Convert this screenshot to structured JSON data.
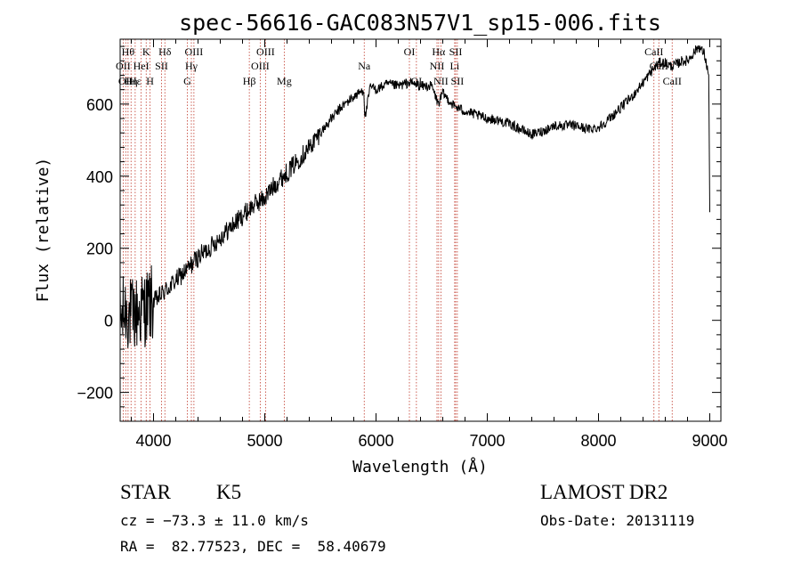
{
  "chart_data": {
    "type": "line",
    "title": "spec-56616-GAC083N57V1_sp15-006.fits",
    "xlabel": "Wavelength (Å)",
    "ylabel": "Flux (relative)",
    "xlim": [
      3700,
      9100
    ],
    "ylim": [
      -280,
      780
    ],
    "x_ticks": [
      4000,
      5000,
      6000,
      7000,
      8000,
      9000
    ],
    "y_ticks": [
      -200,
      0,
      200,
      400,
      600
    ],
    "x_tick_labels": [
      "4000",
      "5000",
      "6000",
      "7000",
      "8000",
      "9000"
    ],
    "y_tick_labels": [
      "−200",
      "0",
      "200",
      "400",
      "600"
    ],
    "grid": false,
    "series": [
      {
        "name": "",
        "color": "#000000",
        "x": [
          3700,
          3750,
          3800,
          3850,
          3900,
          3950,
          4000,
          4100,
          4200,
          4300,
          4400,
          4500,
          4600,
          4700,
          4800,
          4900,
          5000,
          5100,
          5200,
          5300,
          5400,
          5500,
          5600,
          5700,
          5800,
          5890,
          5900,
          5950,
          6000,
          6100,
          6200,
          6300,
          6400,
          6500,
          6560,
          6600,
          6700,
          6800,
          6900,
          7000,
          7100,
          7200,
          7300,
          7400,
          7500,
          7600,
          7700,
          7800,
          7900,
          8000,
          8100,
          8200,
          8300,
          8400,
          8500,
          8550,
          8600,
          8650,
          8700,
          8750,
          8800,
          8850,
          8900,
          8950,
          8990,
          9000
        ],
        "y": [
          0,
          30,
          10,
          20,
          30,
          40,
          50,
          80,
          110,
          140,
          175,
          200,
          230,
          260,
          290,
          320,
          340,
          380,
          410,
          445,
          480,
          520,
          560,
          595,
          620,
          640,
          560,
          650,
          640,
          655,
          650,
          660,
          650,
          650,
          600,
          630,
          595,
          580,
          570,
          560,
          555,
          545,
          530,
          515,
          525,
          540,
          540,
          540,
          530,
          535,
          560,
          590,
          620,
          660,
          700,
          715,
          715,
          705,
          710,
          720,
          720,
          740,
          760,
          740,
          680,
          300
        ]
      }
    ],
    "line_markers": [
      {
        "wavelength": 3727,
        "label": "OII",
        "row": 2
      },
      {
        "wavelength": 3750,
        "label": "OII",
        "row": 3
      },
      {
        "wavelength": 3771,
        "label": "Hθ",
        "row": 1
      },
      {
        "wavelength": 3798,
        "label": "Hη",
        "row": 3
      },
      {
        "wavelength": 3835,
        "label": "Hε",
        "row": 3
      },
      {
        "wavelength": 3889,
        "label": "HeI",
        "row": 2
      },
      {
        "wavelength": 3934,
        "label": "K",
        "row": 1
      },
      {
        "wavelength": 3969,
        "label": "H",
        "row": 3
      },
      {
        "wavelength": 4072,
        "label": "SII",
        "row": 2
      },
      {
        "wavelength": 4102,
        "label": "Hδ",
        "row": 1
      },
      {
        "wavelength": 4304,
        "label": "G",
        "row": 3
      },
      {
        "wavelength": 4340,
        "label": "Hγ",
        "row": 2
      },
      {
        "wavelength": 4363,
        "label": "OIII",
        "row": 1
      },
      {
        "wavelength": 4861,
        "label": "Hβ",
        "row": 3
      },
      {
        "wavelength": 4959,
        "label": "OIII",
        "row": 2
      },
      {
        "wavelength": 5007,
        "label": "OIII",
        "row": 1
      },
      {
        "wavelength": 5175,
        "label": "Mg",
        "row": 3
      },
      {
        "wavelength": 5894,
        "label": "Na",
        "row": 2
      },
      {
        "wavelength": 6300,
        "label": "OI",
        "row": 1
      },
      {
        "wavelength": 6363,
        "label": "OI",
        "row": 3
      },
      {
        "wavelength": 6548,
        "label": "NII",
        "row": 2
      },
      {
        "wavelength": 6563,
        "label": "Hα",
        "row": 1
      },
      {
        "wavelength": 6583,
        "label": "NII",
        "row": 3
      },
      {
        "wavelength": 6707,
        "label": "Li",
        "row": 2
      },
      {
        "wavelength": 6716,
        "label": "SII",
        "row": 1
      },
      {
        "wavelength": 6731,
        "label": "SII",
        "row": 3
      },
      {
        "wavelength": 8498,
        "label": "CaII",
        "row": 1
      },
      {
        "wavelength": 8542,
        "label": "CaII",
        "row": 2
      },
      {
        "wavelength": 8662,
        "label": "CaII",
        "row": 3
      }
    ],
    "marker_color": "#c0392b"
  },
  "info": {
    "class_label": "STAR",
    "subclass": "K5",
    "redshift": "cz = −73.3 ± 11.0 km/s",
    "coords": "RA =  82.77523, DEC =  58.40679",
    "survey": "LAMOST DR2",
    "obs_date": "Obs-Date: 20131119"
  }
}
